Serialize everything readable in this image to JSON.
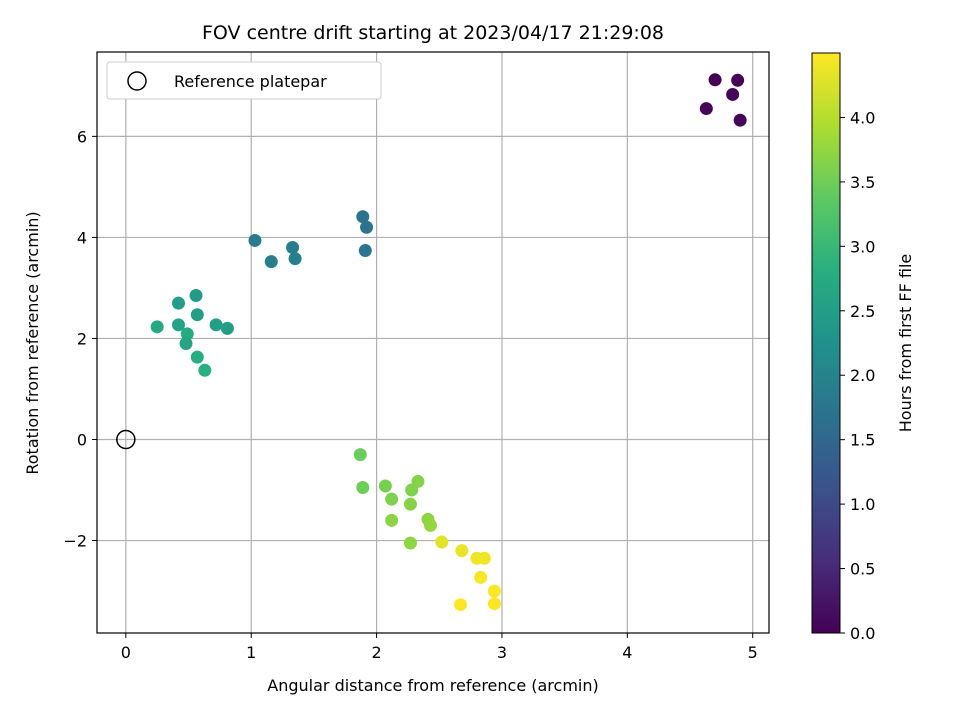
{
  "chart_data": {
    "type": "scatter",
    "title": "FOV centre drift starting at 2023/04/17 21:29:08",
    "xlabel": "Angular distance from reference (arcmin)",
    "ylabel": "Rotation from reference (arcmin)",
    "xlim": [
      -0.23,
      5.13
    ],
    "ylim": [
      -3.83,
      7.67
    ],
    "xticks": [
      0,
      1,
      2,
      3,
      4,
      5
    ],
    "xtick_labels": [
      "0",
      "1",
      "2",
      "3",
      "4",
      "5"
    ],
    "yticks": [
      -2,
      0,
      2,
      4,
      6
    ],
    "ytick_labels": [
      "−2",
      "0",
      "2",
      "4",
      "6"
    ],
    "grid": true,
    "legend": {
      "placement": "top-left",
      "entries": [
        "Reference platepar"
      ]
    },
    "reference_point": {
      "x": 0,
      "y": 0,
      "label": "Reference platepar"
    },
    "colorbar": {
      "label": "Hours from first FF file",
      "colormap": "viridis",
      "range": [
        0.0,
        4.5
      ],
      "ticks": [
        0.0,
        0.5,
        1.0,
        1.5,
        2.0,
        2.5,
        3.0,
        3.5,
        4.0
      ],
      "tick_labels": [
        "0.0",
        "0.5",
        "1.0",
        "1.5",
        "2.0",
        "2.5",
        "3.0",
        "3.5",
        "4.0"
      ]
    },
    "points": [
      {
        "x": 4.7,
        "y": 7.12,
        "hours": 0.0
      },
      {
        "x": 4.88,
        "y": 7.11,
        "hours": 0.02
      },
      {
        "x": 4.84,
        "y": 6.83,
        "hours": 0.04
      },
      {
        "x": 4.63,
        "y": 6.55,
        "hours": 0.06
      },
      {
        "x": 4.9,
        "y": 6.32,
        "hours": 0.08
      },
      {
        "x": 1.89,
        "y": 4.41,
        "hours": 1.72
      },
      {
        "x": 1.92,
        "y": 4.2,
        "hours": 1.7
      },
      {
        "x": 1.91,
        "y": 3.74,
        "hours": 1.74
      },
      {
        "x": 1.03,
        "y": 3.94,
        "hours": 1.85
      },
      {
        "x": 1.33,
        "y": 3.8,
        "hours": 1.88
      },
      {
        "x": 1.35,
        "y": 3.58,
        "hours": 1.9
      },
      {
        "x": 1.16,
        "y": 3.52,
        "hours": 1.93
      },
      {
        "x": 0.56,
        "y": 2.85,
        "hours": 2.45
      },
      {
        "x": 0.42,
        "y": 2.7,
        "hours": 2.5
      },
      {
        "x": 0.57,
        "y": 2.47,
        "hours": 2.53
      },
      {
        "x": 0.72,
        "y": 2.27,
        "hours": 2.5
      },
      {
        "x": 0.81,
        "y": 2.2,
        "hours": 2.48
      },
      {
        "x": 0.42,
        "y": 2.27,
        "hours": 2.58
      },
      {
        "x": 0.25,
        "y": 2.23,
        "hours": 2.7
      },
      {
        "x": 0.49,
        "y": 2.09,
        "hours": 2.75
      },
      {
        "x": 0.48,
        "y": 1.9,
        "hours": 2.62
      },
      {
        "x": 0.57,
        "y": 1.63,
        "hours": 2.78
      },
      {
        "x": 0.63,
        "y": 1.37,
        "hours": 2.82
      },
      {
        "x": 1.87,
        "y": -0.3,
        "hours": 3.45
      },
      {
        "x": 1.89,
        "y": -0.95,
        "hours": 3.5
      },
      {
        "x": 2.07,
        "y": -0.92,
        "hours": 3.55
      },
      {
        "x": 2.12,
        "y": -1.18,
        "hours": 3.6
      },
      {
        "x": 2.28,
        "y": -1.0,
        "hours": 3.62
      },
      {
        "x": 2.33,
        "y": -0.83,
        "hours": 3.65
      },
      {
        "x": 2.27,
        "y": -1.28,
        "hours": 3.67
      },
      {
        "x": 2.12,
        "y": -1.6,
        "hours": 3.7
      },
      {
        "x": 2.41,
        "y": -1.58,
        "hours": 3.72
      },
      {
        "x": 2.43,
        "y": -1.7,
        "hours": 3.75
      },
      {
        "x": 2.27,
        "y": -2.05,
        "hours": 3.72
      },
      {
        "x": 2.52,
        "y": -2.03,
        "hours": 4.3
      },
      {
        "x": 2.68,
        "y": -2.2,
        "hours": 4.35
      },
      {
        "x": 2.8,
        "y": -2.35,
        "hours": 4.4
      },
      {
        "x": 2.86,
        "y": -2.35,
        "hours": 4.42
      },
      {
        "x": 2.83,
        "y": -2.73,
        "hours": 4.45
      },
      {
        "x": 2.94,
        "y": -3.0,
        "hours": 4.48
      },
      {
        "x": 2.94,
        "y": -3.25,
        "hours": 4.5
      },
      {
        "x": 2.67,
        "y": -3.27,
        "hours": 4.5
      }
    ]
  }
}
